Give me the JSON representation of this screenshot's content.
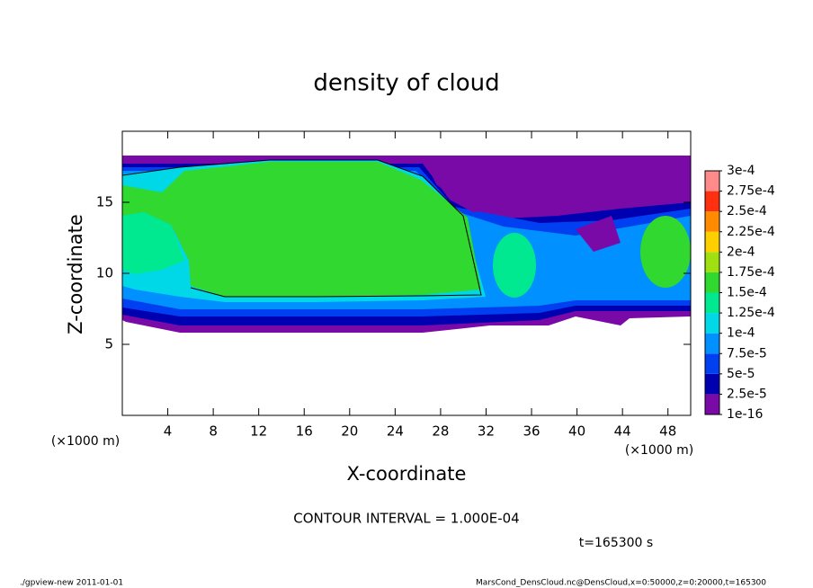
{
  "chart_data": {
    "type": "contour",
    "title": "density of cloud",
    "x_label": "X-coordinate",
    "y_label": "Z-coordinate",
    "x_unit": "(×1000 m)",
    "xlim": [
      0,
      50
    ],
    "xticks": [
      4,
      8,
      12,
      16,
      20,
      24,
      28,
      32,
      36,
      40,
      44,
      48
    ],
    "ylim": [
      0,
      20
    ],
    "yticks": [
      5,
      10,
      15
    ],
    "colorbar": {
      "levels": [
        {
          "value": 1e-16,
          "label": "1e-16"
        },
        {
          "value": 2.5e-05,
          "label": "2.5e-5"
        },
        {
          "value": 5e-05,
          "label": "5e-5"
        },
        {
          "value": 7.5e-05,
          "label": "7.5e-5"
        },
        {
          "value": 0.0001,
          "label": "1e-4"
        },
        {
          "value": 0.000125,
          "label": "1.25e-4"
        },
        {
          "value": 0.00015,
          "label": "1.5e-4"
        },
        {
          "value": 0.000175,
          "label": "1.75e-4"
        },
        {
          "value": 0.0002,
          "label": "2e-4"
        },
        {
          "value": 0.000225,
          "label": "2.25e-4"
        },
        {
          "value": 0.00025,
          "label": "2.5e-4"
        },
        {
          "value": 0.000275,
          "label": "2.75e-4"
        },
        {
          "value": 0.0003,
          "label": "3e-4"
        }
      ],
      "colors": [
        "#7a0aa8",
        "#0000b0",
        "#0040f0",
        "#0090ff",
        "#00d8e8",
        "#00e890",
        "#30d830",
        "#a0e010",
        "#ffd000",
        "#ff8c00",
        "#ff3010",
        "#ff8a8a"
      ]
    },
    "contour_interval": "CONTOUR INTERVAL = 1.000E-04",
    "time_label": "t=165300 s"
  },
  "footer": {
    "left": "./gpview-new   2011-01-01",
    "right": "MarsCond_DensCloud.nc@DensCloud,x=0:50000,z=0:20000,t=165300"
  }
}
